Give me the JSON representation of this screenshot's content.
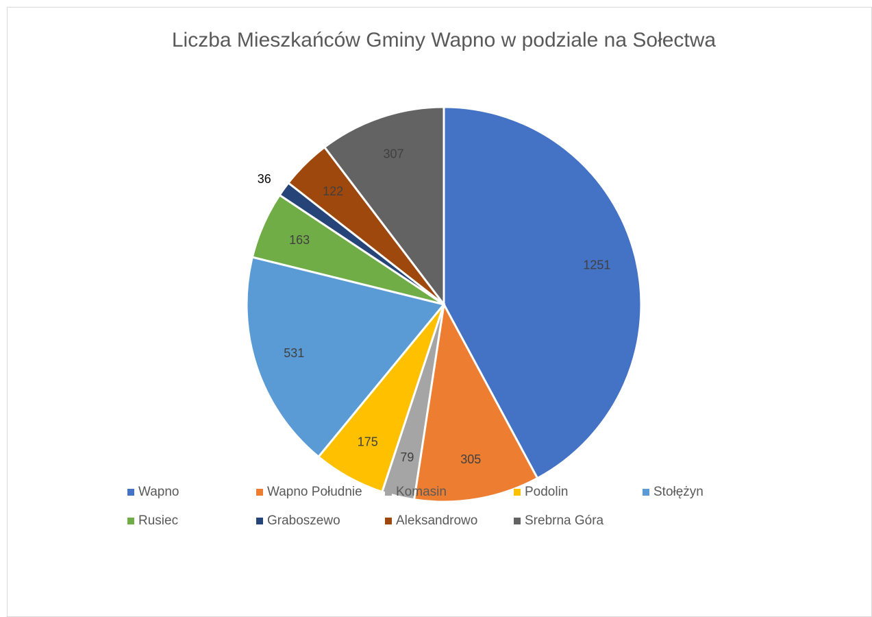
{
  "chart_data": {
    "type": "pie",
    "title": "Liczba Mieszkańców Gminy Wapno w podziale na Sołectwa",
    "categories": [
      "Wapno",
      "Wapno Południe",
      "Komasin",
      "Podolin",
      "Stołężyn",
      "Rusiec",
      "Graboszewo",
      "Aleksandrowo",
      "Srebrna Góra"
    ],
    "values": [
      1251,
      305,
      79,
      175,
      531,
      163,
      36,
      122,
      307
    ],
    "colors": [
      "#4472c4",
      "#ed7d31",
      "#a5a5a5",
      "#ffc000",
      "#5b9bd5",
      "#70ad47",
      "#264478",
      "#9e480e",
      "#636363"
    ],
    "legend": "bottom"
  }
}
